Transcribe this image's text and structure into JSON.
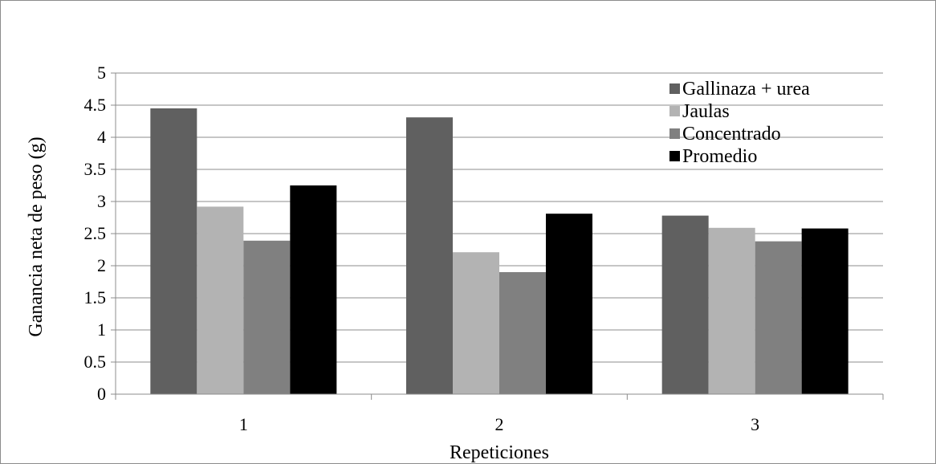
{
  "chart_data": {
    "type": "bar",
    "title": "",
    "xlabel": "Repeticiones",
    "ylabel": "Ganancia neta  de peso (g)",
    "categories": [
      "1",
      "2",
      "3"
    ],
    "ylim": [
      0,
      5
    ],
    "yticks": [
      "0",
      "0.5",
      "1",
      "1.5",
      "2",
      "2.5",
      "3",
      "3.5",
      "4",
      "4.5",
      "5"
    ],
    "grid": true,
    "legend_position": "top-right",
    "series": [
      {
        "name": "Gallinaza + urea",
        "color": "#606060",
        "values": [
          4.45,
          4.31,
          2.78
        ]
      },
      {
        "name": "Jaulas",
        "color": "#b3b3b3",
        "values": [
          2.92,
          2.21,
          2.59
        ]
      },
      {
        "name": "Concentrado",
        "color": "#808080",
        "values": [
          2.39,
          1.9,
          2.38
        ]
      },
      {
        "name": "Promedio",
        "color": "#000000",
        "values": [
          3.25,
          2.81,
          2.58
        ]
      }
    ]
  }
}
